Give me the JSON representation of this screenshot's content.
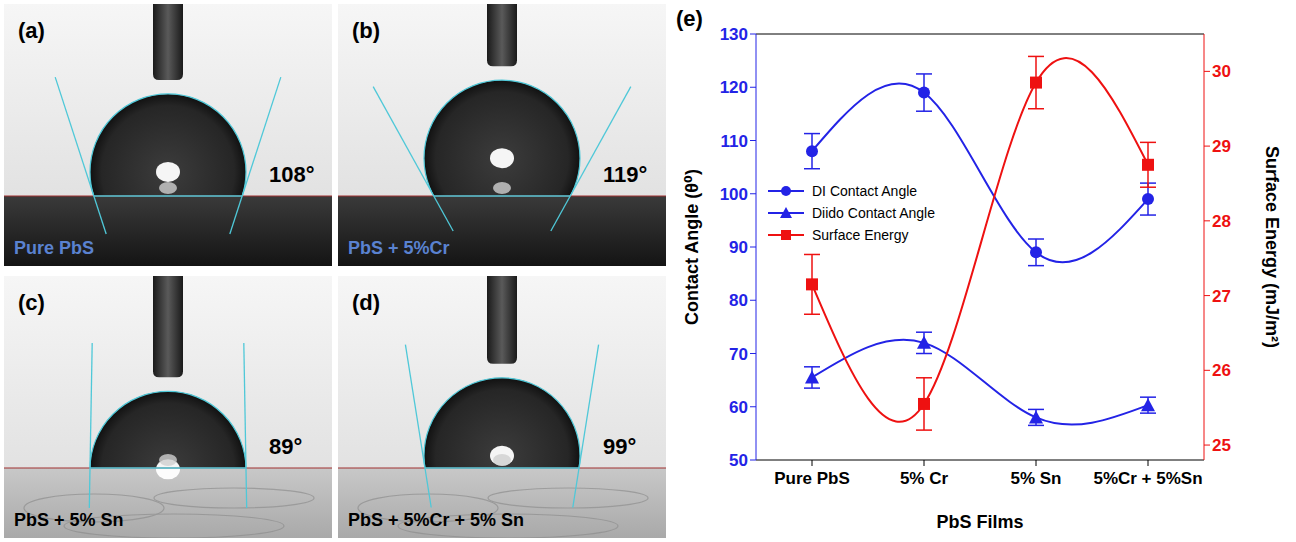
{
  "panels": [
    {
      "label": "(a)",
      "sample": "Pure PbS",
      "contact_angle": 108,
      "angle_label": "108°"
    },
    {
      "label": "(b)",
      "sample": "PbS + 5%Cr",
      "contact_angle": 119,
      "angle_label": "119°"
    },
    {
      "label": "(c)",
      "sample": "PbS + 5% Sn",
      "contact_angle": 89,
      "angle_label": "89°"
    },
    {
      "label": "(d)",
      "sample": "PbS + 5%Cr + 5% Sn",
      "contact_angle": 99,
      "angle_label": "99°"
    }
  ],
  "chart_data": {
    "type": "line",
    "panel_label": "(e)",
    "categories": [
      "Pure PbS",
      "5% Cr",
      "5% Sn",
      "5%Cr + 5%Sn"
    ],
    "x_label": "PbS Films",
    "y_label": "Contact Angle (θ⁰)",
    "y2_label": "Surface Energy (mJ/m²)",
    "ylim": [
      50,
      130
    ],
    "yticks": [
      50,
      60,
      70,
      80,
      90,
      100,
      110,
      120,
      130
    ],
    "y2lim": [
      24.8,
      30.5
    ],
    "y2ticks": [
      25,
      26,
      27,
      28,
      29,
      30
    ],
    "legend": "left",
    "series": [
      {
        "name": "DI Contact Angle",
        "color": "#2323e6",
        "marker": "circle",
        "line_style": "solid",
        "values": [
          108,
          119,
          89,
          99
        ],
        "errors": [
          3.3,
          3.5,
          2.5,
          3
        ]
      },
      {
        "name": "Diido Contact Angle",
        "color": "#2323e6",
        "marker": "triangle",
        "line_style": "solid",
        "values": [
          65.5,
          72,
          58,
          60.3
        ],
        "errors": [
          2,
          2,
          1.5,
          1.5
        ]
      },
      {
        "name": "Surface Energy",
        "color": "#ee1111",
        "marker": "square",
        "line_style": "solid",
        "axis": "y2",
        "values": [
          27.15,
          25.55,
          29.85,
          28.75
        ],
        "errors": [
          0.4,
          0.35,
          0.35,
          0.3
        ]
      }
    ]
  }
}
